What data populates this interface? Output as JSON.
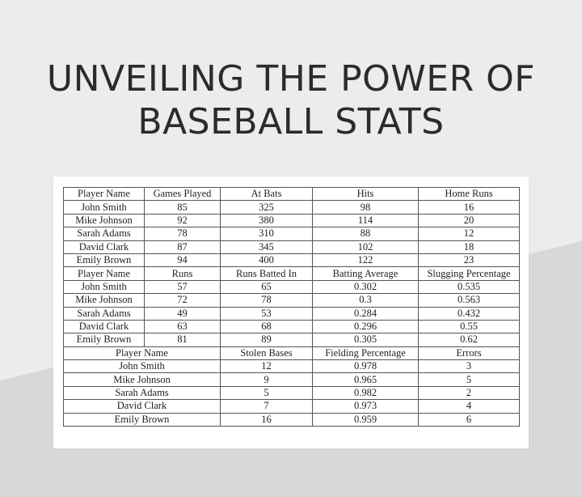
{
  "title": {
    "line1": "UNVEILING THE POWER OF",
    "line2": "BASEBALL STATS"
  },
  "table1": {
    "headers": [
      "Player Name",
      "Games Played",
      "At Bats",
      "Hits",
      "Home Runs"
    ],
    "rows": [
      [
        "John Smith",
        "85",
        "325",
        "98",
        "16"
      ],
      [
        "Mike Johnson",
        "92",
        "380",
        "114",
        "20"
      ],
      [
        "Sarah Adams",
        "78",
        "310",
        "88",
        "12"
      ],
      [
        "David Clark",
        "87",
        "345",
        "102",
        "18"
      ],
      [
        "Emily Brown",
        "94",
        "400",
        "122",
        "23"
      ]
    ]
  },
  "table2": {
    "headers": [
      "Player Name",
      "Runs",
      "Runs Batted In",
      "Batting Average",
      "Slugging Percentage"
    ],
    "rows": [
      [
        "John Smith",
        "57",
        "65",
        "0.302",
        "0.535"
      ],
      [
        "Mike Johnson",
        "72",
        "78",
        "0.3",
        "0.563"
      ],
      [
        "Sarah Adams",
        "49",
        "53",
        "0.284",
        "0.432"
      ],
      [
        "David Clark",
        "63",
        "68",
        "0.296",
        "0.55"
      ],
      [
        "Emily Brown",
        "81",
        "89",
        "0.305",
        "0.62"
      ]
    ]
  },
  "table3": {
    "headers": [
      "Player Name",
      "Stolen Bases",
      "Fielding Percentage",
      "Errors"
    ],
    "rows": [
      [
        "John Smith",
        "12",
        "0.978",
        "3"
      ],
      [
        "Mike Johnson",
        "9",
        "0.965",
        "5"
      ],
      [
        "Sarah Adams",
        "5",
        "0.982",
        "2"
      ],
      [
        "David Clark",
        "7",
        "0.973",
        "4"
      ],
      [
        "Emily Brown",
        "16",
        "0.959",
        "6"
      ]
    ]
  }
}
